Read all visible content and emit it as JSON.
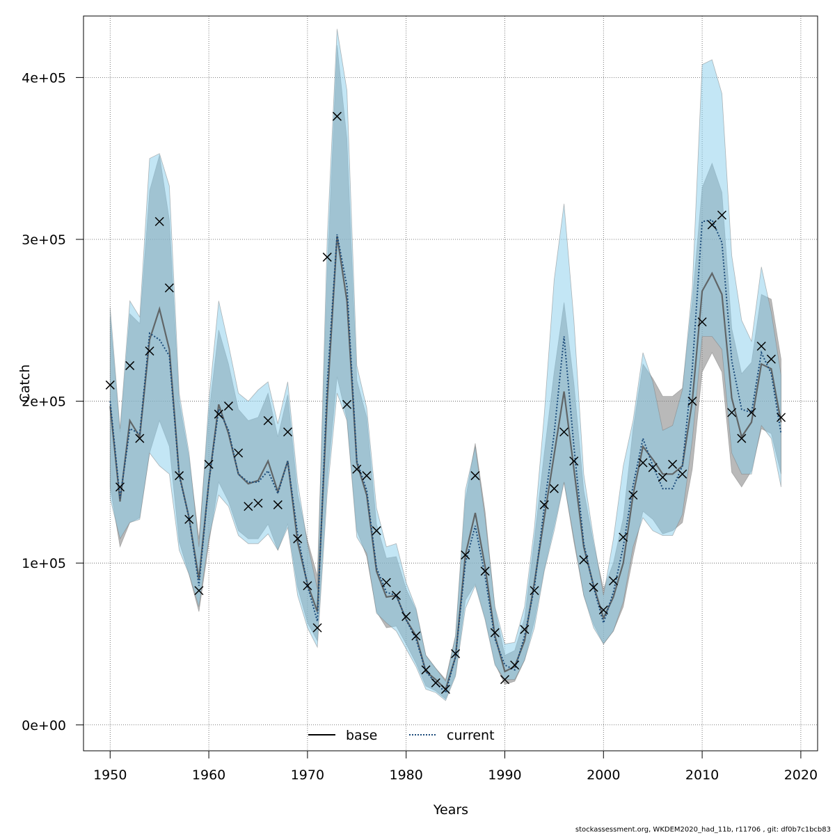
{
  "footer": "stockassessment.org, WKDEM2020_had_11b, r11706 , git: df0b7c1bcb83",
  "chart_data": {
    "type": "line",
    "xlabel": "Years",
    "ylabel": "Catch",
    "xlim": [
      1947.3,
      2021.7
    ],
    "ylim": [
      -16000,
      438000
    ],
    "xticks": [
      1950,
      1960,
      1970,
      1980,
      1990,
      2000,
      2010,
      2020
    ],
    "xtick_labels": [
      "1950",
      "1960",
      "1970",
      "1980",
      "1990",
      "2000",
      "2010",
      "2020"
    ],
    "yticks": [
      0,
      100000,
      200000,
      300000,
      400000
    ],
    "ytick_labels": [
      "0e+00",
      "1e+05",
      "2e+05",
      "3e+05",
      "4e+05"
    ],
    "grid": true,
    "legend_position": "bottom-center",
    "legend": [
      {
        "name": "base",
        "style": "solid",
        "color": "#000000"
      },
      {
        "name": "current",
        "style": "dotted",
        "color": "#1a4a7a"
      }
    ],
    "colors": {
      "base_band": "#808080",
      "current_band": "#87ceeb",
      "current_line": "#1a4a7a"
    },
    "x": [
      1950,
      1951,
      1952,
      1953,
      1954,
      1955,
      1956,
      1957,
      1958,
      1959,
      1960,
      1961,
      1962,
      1963,
      1964,
      1965,
      1966,
      1967,
      1968,
      1969,
      1970,
      1971,
      1972,
      1973,
      1974,
      1975,
      1976,
      1977,
      1978,
      1979,
      1980,
      1981,
      1982,
      1983,
      1984,
      1985,
      1986,
      1987,
      1988,
      1989,
      1990,
      1991,
      1992,
      1993,
      1994,
      1995,
      1996,
      1997,
      1998,
      1999,
      2000,
      2001,
      2002,
      2003,
      2004,
      2005,
      2006,
      2007,
      2008,
      2009,
      2010,
      2011,
      2012,
      2013,
      2014,
      2015,
      2016,
      2017,
      2018
    ],
    "series": [
      {
        "name": "base",
        "values": [
          197000,
          138000,
          188000,
          178000,
          238000,
          257000,
          232000,
          155000,
          128000,
          90000,
          150000,
          198000,
          180000,
          155000,
          149000,
          151000,
          163000,
          144000,
          163000,
          113000,
          87000,
          70000,
          200000,
          302000,
          262000,
          162000,
          142000,
          95000,
          79000,
          80000,
          65000,
          55000,
          33000,
          28000,
          22000,
          42000,
          105000,
          131000,
          98000,
          55000,
          33000,
          36000,
          52000,
          88000,
          128000,
          167000,
          206000,
          158000,
          110000,
          86000,
          66000,
          79000,
          100000,
          142000,
          172000,
          164000,
          155000,
          155000,
          160000,
          200000,
          268000,
          279000,
          266000,
          202000,
          178000,
          187000,
          223000,
          220000,
          187000
        ],
        "lower": [
          147000,
          110000,
          125000,
          128000,
          168000,
          188000,
          172000,
          113000,
          93000,
          70000,
          112000,
          150000,
          138000,
          120000,
          115000,
          115000,
          124000,
          108000,
          124000,
          85000,
          63000,
          52000,
          150000,
          215000,
          189000,
          120000,
          104000,
          70000,
          60000,
          61000,
          50000,
          38000,
          24000,
          21000,
          16000,
          31000,
          77000,
          87000,
          66000,
          38000,
          25000,
          27000,
          40000,
          64000,
          96000,
          123000,
          150000,
          113000,
          80000,
          62000,
          50000,
          58000,
          73000,
          104000,
          132000,
          127000,
          118000,
          120000,
          125000,
          158000,
          218000,
          230000,
          218000,
          156000,
          147000,
          157000,
          183000,
          180000,
          155000
        ],
        "upper": [
          252000,
          181000,
          254000,
          248000,
          330000,
          352000,
          312000,
          200000,
          165000,
          115000,
          192000,
          244000,
          223000,
          195000,
          188000,
          190000,
          205000,
          178000,
          204000,
          143000,
          114000,
          92000,
          280000,
          420000,
          362000,
          213000,
          190000,
          124000,
          103000,
          104000,
          84000,
          71000,
          43000,
          35000,
          28000,
          55000,
          139000,
          174000,
          132000,
          72000,
          43000,
          46000,
          66000,
          115000,
          168000,
          218000,
          261000,
          211000,
          145000,
          112000,
          84000,
          100000,
          128000,
          183000,
          223000,
          214000,
          203000,
          203000,
          208000,
          262000,
          332000,
          347000,
          329000,
          245000,
          217000,
          224000,
          266000,
          263000,
          226000
        ]
      },
      {
        "name": "current",
        "values": [
          200000,
          140000,
          183000,
          180000,
          242000,
          238000,
          228000,
          154000,
          128000,
          86000,
          150000,
          195000,
          182000,
          155000,
          150000,
          150000,
          157000,
          143000,
          163000,
          118000,
          86000,
          64000,
          210000,
          303000,
          271000,
          163000,
          145000,
          97000,
          82000,
          80000,
          65000,
          53000,
          33000,
          26000,
          20000,
          42000,
          100000,
          123000,
          92000,
          53000,
          37000,
          34000,
          55000,
          85000,
          135000,
          180000,
          240000,
          172000,
          112000,
          85000,
          63000,
          82000,
          110000,
          148000,
          177000,
          160000,
          146000,
          146000,
          160000,
          220000,
          311000,
          312000,
          298000,
          225000,
          195000,
          193000,
          230000,
          217000,
          180000
        ],
        "lower": [
          140000,
          115000,
          125000,
          127000,
          168000,
          160000,
          155000,
          108000,
          93000,
          73000,
          115000,
          142000,
          135000,
          117000,
          112000,
          112000,
          118000,
          108000,
          122000,
          80000,
          60000,
          48000,
          143000,
          205000,
          188000,
          116000,
          106000,
          69000,
          63000,
          58000,
          47000,
          36000,
          22000,
          20000,
          15000,
          30000,
          72000,
          86000,
          65000,
          37000,
          28000,
          28000,
          40000,
          60000,
          95000,
          120000,
          150000,
          115000,
          80000,
          60000,
          50000,
          58000,
          76000,
          110000,
          128000,
          120000,
          117000,
          117000,
          130000,
          176000,
          240000,
          240000,
          232000,
          168000,
          155000,
          155000,
          185000,
          177000,
          147000
        ],
        "upper": [
          258000,
          183000,
          262000,
          252000,
          350000,
          353000,
          333000,
          205000,
          168000,
          110000,
          200000,
          262000,
          235000,
          205000,
          200000,
          207000,
          212000,
          186000,
          212000,
          150000,
          112000,
          84000,
          300000,
          430000,
          392000,
          222000,
          196000,
          134000,
          110000,
          112000,
          88000,
          72000,
          43000,
          35000,
          27000,
          55000,
          145000,
          172000,
          128000,
          73000,
          50000,
          51000,
          73000,
          122000,
          192000,
          275000,
          322000,
          250000,
          155000,
          115000,
          80000,
          115000,
          160000,
          188000,
          230000,
          212000,
          182000,
          185000,
          207000,
          270000,
          408000,
          411000,
          390000,
          290000,
          250000,
          237000,
          283000,
          255000,
          216000
        ]
      }
    ],
    "observations": {
      "name": "observed catch",
      "marker": "x",
      "x": [
        1950,
        1951,
        1952,
        1953,
        1954,
        1955,
        1956,
        1957,
        1958,
        1959,
        1960,
        1961,
        1962,
        1963,
        1964,
        1965,
        1966,
        1967,
        1968,
        1969,
        1970,
        1971,
        1972,
        1973,
        1974,
        1975,
        1976,
        1977,
        1978,
        1979,
        1980,
        1981,
        1982,
        1983,
        1984,
        1985,
        1986,
        1987,
        1988,
        1989,
        1990,
        1991,
        1992,
        1993,
        1994,
        1995,
        1996,
        1997,
        1998,
        1999,
        2000,
        2001,
        2002,
        2003,
        2004,
        2005,
        2006,
        2007,
        2008,
        2009,
        2010,
        2011,
        2012,
        2013,
        2014,
        2015,
        2016,
        2017,
        2018
      ],
      "values": [
        210000,
        147000,
        222000,
        177000,
        231000,
        311000,
        270000,
        154000,
        127000,
        83000,
        161000,
        192000,
        197000,
        168000,
        135000,
        137000,
        188000,
        136000,
        181000,
        115000,
        86000,
        60000,
        289000,
        376000,
        198000,
        158000,
        154000,
        120000,
        88000,
        80000,
        67000,
        55000,
        34000,
        26000,
        22000,
        44000,
        105000,
        154000,
        95000,
        57000,
        28000,
        37000,
        59000,
        83000,
        136000,
        146000,
        181000,
        163000,
        102000,
        85000,
        71000,
        89000,
        116000,
        142000,
        162000,
        159000,
        153000,
        161000,
        155000,
        200000,
        249000,
        309000,
        315000,
        193000,
        177000,
        193000,
        234000,
        226000,
        190000
      ]
    }
  }
}
